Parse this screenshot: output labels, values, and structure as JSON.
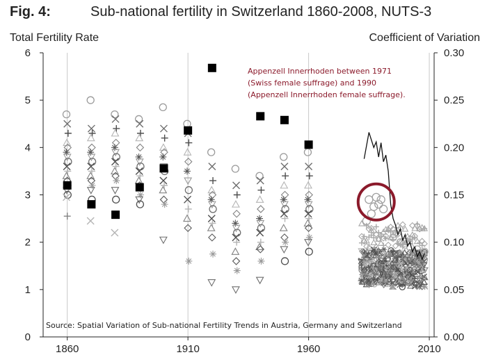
{
  "figure": {
    "label": "Fig. 4:",
    "title": "Sub-national fertility in Switzerland 1860-2008, NUTS-3"
  },
  "chart_data": {
    "type": "scatter",
    "title": "Sub-national fertility in Switzerland 1860-2008, NUTS-3",
    "ylabel_left": "Total Fertility Rate",
    "ylabel_right": "Coefficient of Variation",
    "xlim": [
      1850,
      2012
    ],
    "ylim_left": [
      0,
      6
    ],
    "ylim_right": [
      0.0,
      0.3
    ],
    "x_ticks": [
      1860,
      1910,
      1960,
      2010
    ],
    "y_ticks_left": [
      0,
      1,
      2,
      3,
      4,
      5,
      6
    ],
    "y_ticks_right": [
      "0.00",
      "0.05",
      "0.10",
      "0.15",
      "0.20",
      "0.25",
      "0.30"
    ],
    "gridlines": "vertical",
    "series": [
      {
        "name": "Coefficient of Variation (black squares, right axis)",
        "axis": "right",
        "points": [
          {
            "x": 1860,
            "y": 0.16
          },
          {
            "x": 1870,
            "y": 0.14
          },
          {
            "x": 1880,
            "y": 0.129
          },
          {
            "x": 1890,
            "y": 0.158
          },
          {
            "x": 1900,
            "y": 0.178
          },
          {
            "x": 1910,
            "y": 0.218
          },
          {
            "x": 1920,
            "y": 0.284
          },
          {
            "x": 1940,
            "y": 0.233
          },
          {
            "x": 1950,
            "y": 0.229
          },
          {
            "x": 1960,
            "y": 0.203
          }
        ]
      },
      {
        "name": "Coefficient of Variation (annual line, right axis)",
        "axis": "right",
        "points": [
          {
            "x": 1983,
            "y": 0.188
          },
          {
            "x": 1985,
            "y": 0.216
          },
          {
            "x": 1987,
            "y": 0.2
          },
          {
            "x": 1988,
            "y": 0.206
          },
          {
            "x": 1989,
            "y": 0.19
          },
          {
            "x": 1990,
            "y": 0.205
          },
          {
            "x": 1991,
            "y": 0.185
          },
          {
            "x": 1992,
            "y": 0.192
          },
          {
            "x": 1993,
            "y": 0.175
          },
          {
            "x": 1994,
            "y": 0.14
          },
          {
            "x": 1995,
            "y": 0.125
          },
          {
            "x": 1996,
            "y": 0.118
          },
          {
            "x": 1997,
            "y": 0.108
          },
          {
            "x": 1998,
            "y": 0.114
          },
          {
            "x": 1999,
            "y": 0.102
          },
          {
            "x": 2000,
            "y": 0.108
          },
          {
            "x": 2001,
            "y": 0.096
          },
          {
            "x": 2002,
            "y": 0.1
          },
          {
            "x": 2003,
            "y": 0.09
          },
          {
            "x": 2004,
            "y": 0.095
          },
          {
            "x": 2005,
            "y": 0.085
          },
          {
            "x": 2006,
            "y": 0.09
          },
          {
            "x": 2007,
            "y": 0.082
          },
          {
            "x": 2008,
            "y": 0.088
          }
        ]
      },
      {
        "name": "Canton TFR decennial (left axis)",
        "axis": "left",
        "points_by_year": {
          "1860": [
            4.7,
            4.5,
            4.3,
            4.1,
            4.0,
            3.9,
            3.8,
            3.7,
            3.6,
            3.5,
            3.4,
            3.3,
            3.2,
            3.1,
            3.0,
            2.95,
            2.55
          ],
          "1870": [
            5.0,
            4.4,
            4.3,
            4.2,
            4.0,
            3.9,
            3.8,
            3.7,
            3.6,
            3.5,
            3.4,
            3.3,
            3.2,
            3.1,
            2.9,
            2.45
          ],
          "1880": [
            4.7,
            4.6,
            4.4,
            4.3,
            4.1,
            4.0,
            3.9,
            3.8,
            3.7,
            3.6,
            3.5,
            3.4,
            3.3,
            3.1,
            2.9,
            2.2
          ],
          "1890": [
            4.6,
            4.5,
            4.3,
            4.2,
            4.0,
            3.8,
            3.7,
            3.6,
            3.5,
            3.4,
            3.3,
            3.2,
            3.0,
            2.9,
            2.8
          ],
          "1900": [
            4.85,
            4.4,
            4.2,
            4.0,
            3.9,
            3.8,
            3.6,
            3.5,
            3.3,
            3.2,
            3.1,
            2.9,
            2.8,
            2.05
          ],
          "1910": [
            4.5,
            4.3,
            4.1,
            3.9,
            3.7,
            3.5,
            3.3,
            3.1,
            2.9,
            2.7,
            2.5,
            2.3,
            1.6
          ],
          "1920": [
            3.9,
            3.6,
            3.3,
            3.1,
            3.0,
            2.9,
            2.8,
            2.7,
            2.5,
            2.4,
            2.3,
            2.1,
            1.75,
            1.15
          ],
          "1930": [
            3.55,
            3.2,
            3.0,
            2.8,
            2.6,
            2.4,
            2.3,
            2.2,
            2.1,
            2.0,
            1.8,
            1.6,
            1.4,
            1.0
          ],
          "1940": [
            3.4,
            3.3,
            3.1,
            2.9,
            2.7,
            2.5,
            2.4,
            2.3,
            2.2,
            2.0,
            1.9,
            1.85,
            1.6,
            1.2
          ],
          "1950": [
            3.8,
            3.6,
            3.4,
            3.2,
            3.0,
            2.9,
            2.8,
            2.7,
            2.6,
            2.5,
            2.3,
            2.1,
            2.0,
            1.85,
            1.6
          ],
          "1960": [
            3.9,
            3.6,
            3.4,
            3.2,
            3.0,
            2.9,
            2.8,
            2.7,
            2.6,
            2.5,
            2.4,
            2.3,
            2.1,
            2.0,
            1.8
          ]
        }
      }
    ],
    "annotations": [
      {
        "text_lines": [
          "Appenzell Innerrhoden between 1971",
          "(Swiss female suffrage) and 1990",
          "(Appenzell Innerrhoden female suffrage)."
        ],
        "color": "#8b1a2b"
      },
      {
        "text": "Source: Spatial Variation of Sub-national Fertility Trends in Austria, Germany and Switzerland"
      }
    ],
    "highlight_circle": {
      "x": 1988,
      "y": 2.85,
      "color": "#8b1a2b"
    }
  }
}
